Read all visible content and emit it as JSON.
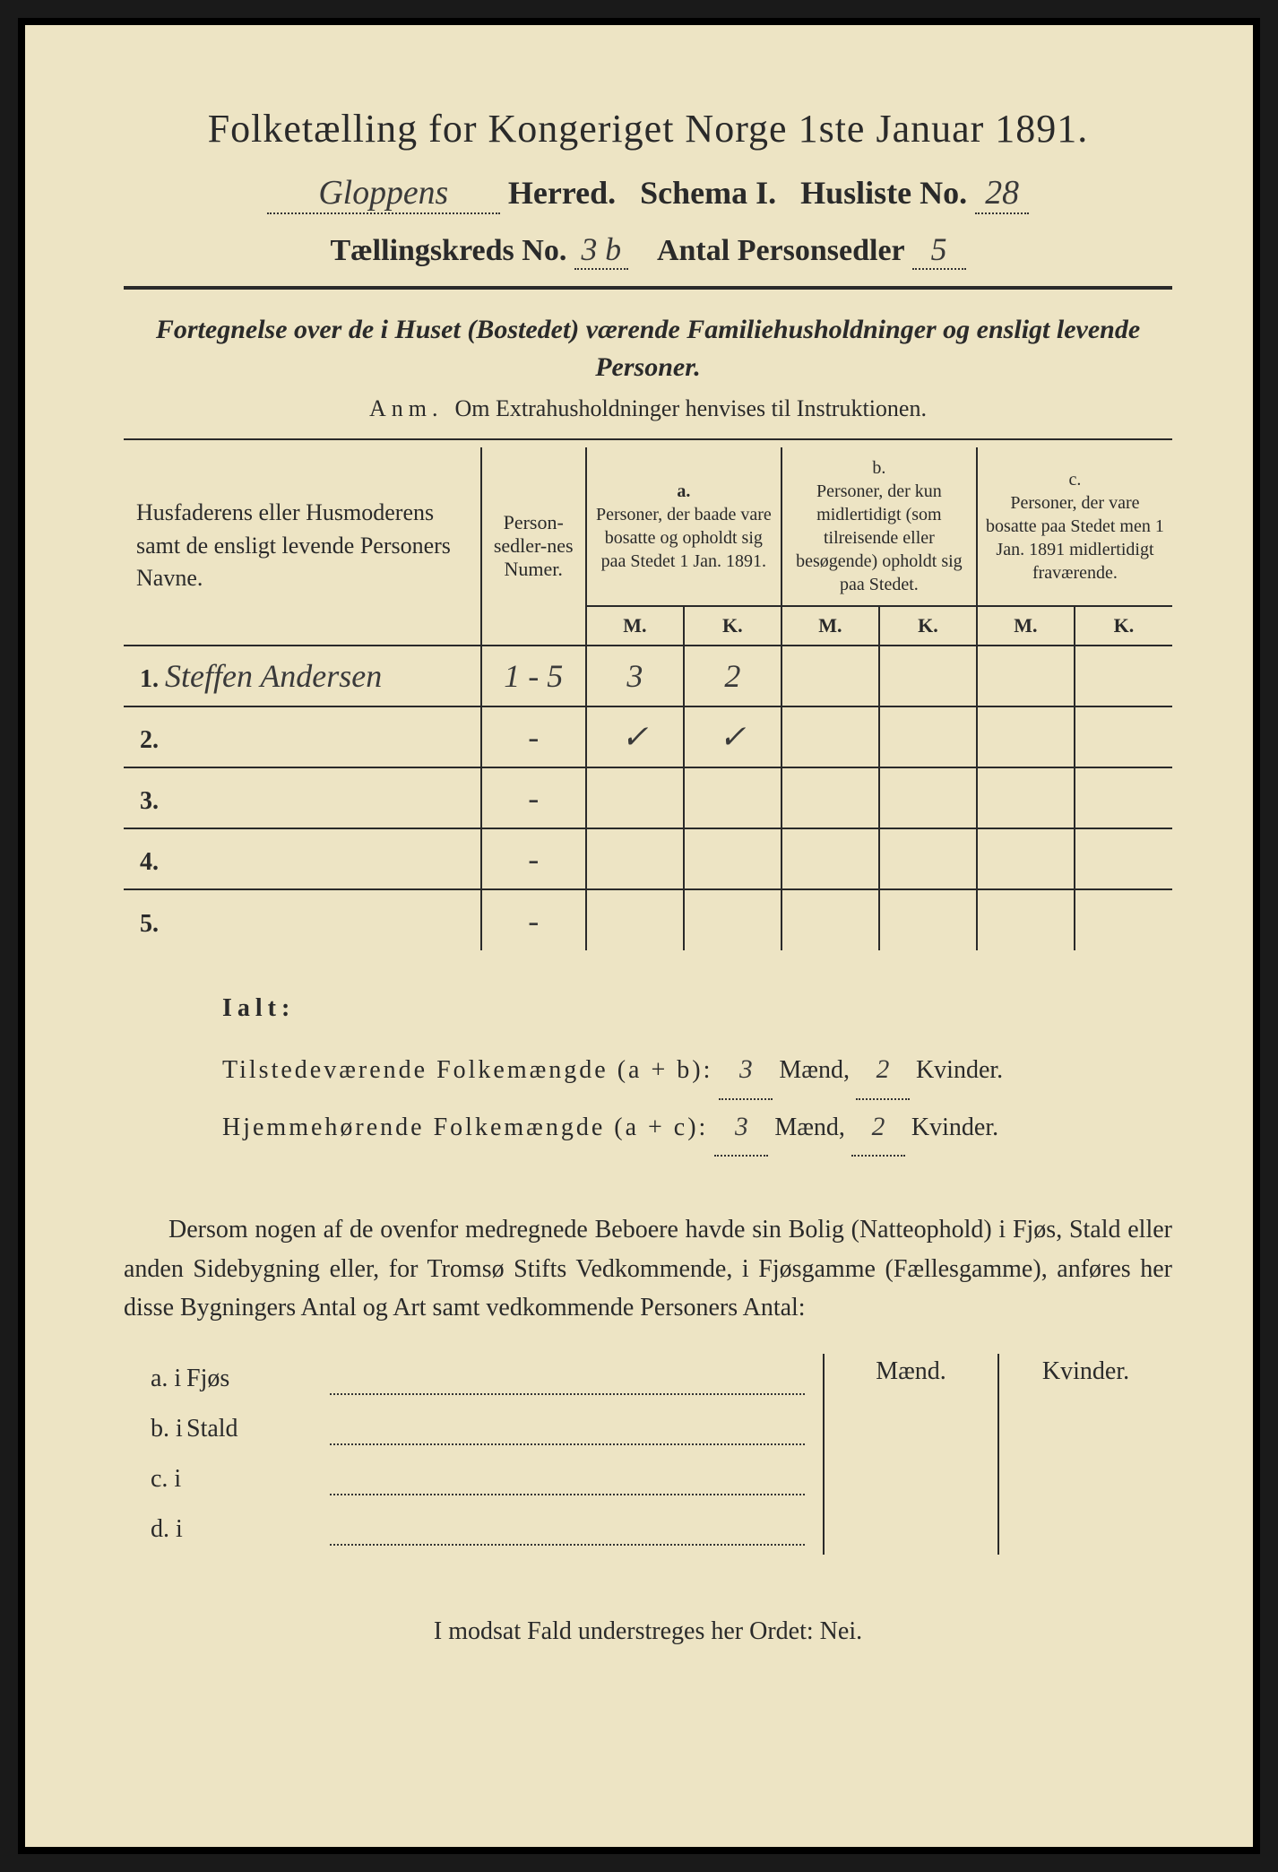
{
  "colors": {
    "paper": "#ede4c4",
    "ink": "#2a2a2a",
    "handwriting": "#3a3a3a",
    "border": "#000000"
  },
  "title": "Folketælling for Kongeriget Norge 1ste Januar 1891.",
  "header": {
    "herred_value": "Gloppens",
    "herred_label": "Herred.",
    "schema_label": "Schema I.",
    "husliste_label": "Husliste No.",
    "husliste_value": "28",
    "kreds_label": "Tællingskreds No.",
    "kreds_value": "3 b",
    "antal_label": "Antal Personsedler",
    "antal_value": "5"
  },
  "subtitle": "Fortegnelse over de i Huset (Bostedet) værende Familiehusholdninger og ensligt levende Personer.",
  "anm_label": "Anm.",
  "anm_text": "Om Extrahusholdninger henvises til Instruktionen.",
  "table": {
    "col_name": "Husfaderens eller Husmoderens samt de ensligt levende Personers Navne.",
    "col_num": "Person-sedler-nes Numer.",
    "col_a_label": "a.",
    "col_a": "Personer, der baade vare bosatte og opholdt sig paa Stedet 1 Jan. 1891.",
    "col_b_label": "b.",
    "col_b": "Personer, der kun midlertidigt (som tilreisende eller besøgende) opholdt sig paa Stedet.",
    "col_c_label": "c.",
    "col_c": "Personer, der vare bosatte paa Stedet men 1 Jan. 1891 midlertidigt fraværende.",
    "m": "M.",
    "k": "K.",
    "rows": [
      {
        "no": "1.",
        "name": "Steffen Andersen",
        "num": "1 - 5",
        "a_m": "3",
        "a_k": "2",
        "b_m": "",
        "b_k": "",
        "c_m": "",
        "c_k": ""
      },
      {
        "no": "2.",
        "name": "",
        "num": "-",
        "a_m": "✓",
        "a_k": "✓",
        "b_m": "",
        "b_k": "",
        "c_m": "",
        "c_k": ""
      },
      {
        "no": "3.",
        "name": "",
        "num": "-",
        "a_m": "",
        "a_k": "",
        "b_m": "",
        "b_k": "",
        "c_m": "",
        "c_k": ""
      },
      {
        "no": "4.",
        "name": "",
        "num": "-",
        "a_m": "",
        "a_k": "",
        "b_m": "",
        "b_k": "",
        "c_m": "",
        "c_k": ""
      },
      {
        "no": "5.",
        "name": "",
        "num": "-",
        "a_m": "",
        "a_k": "",
        "b_m": "",
        "b_k": "",
        "c_m": "",
        "c_k": ""
      }
    ]
  },
  "ialt": {
    "label": "Ialt:",
    "line1_label": "Tilstedeværende Folkemængde (a + b):",
    "line1_m": "3",
    "line1_k": "2",
    "line2_label": "Hjemmehørende Folkemængde (a + c):",
    "line2_m": "3",
    "line2_k": "2",
    "maend": "Mænd,",
    "kvinder": "Kvinder."
  },
  "para": "Dersom nogen af de ovenfor medregnede Beboere havde sin Bolig (Natteophold) i Fjøs, Stald eller anden Sidebygning eller, for Tromsø Stifts Vedkommende, i Fjøsgamme (Fællesgamme), anføres her disse Bygningers Antal og Art samt vedkommende Personers Antal:",
  "outbuildings": {
    "maend": "Mænd.",
    "kvinder": "Kvinder.",
    "rows": [
      {
        "lab": "a.  i",
        "txt": "Fjøs"
      },
      {
        "lab": "b.  i",
        "txt": "Stald"
      },
      {
        "lab": "c.  i",
        "txt": ""
      },
      {
        "lab": "d.  i",
        "txt": ""
      }
    ]
  },
  "footer": "I modsat Fald understreges her Ordet: Nei."
}
